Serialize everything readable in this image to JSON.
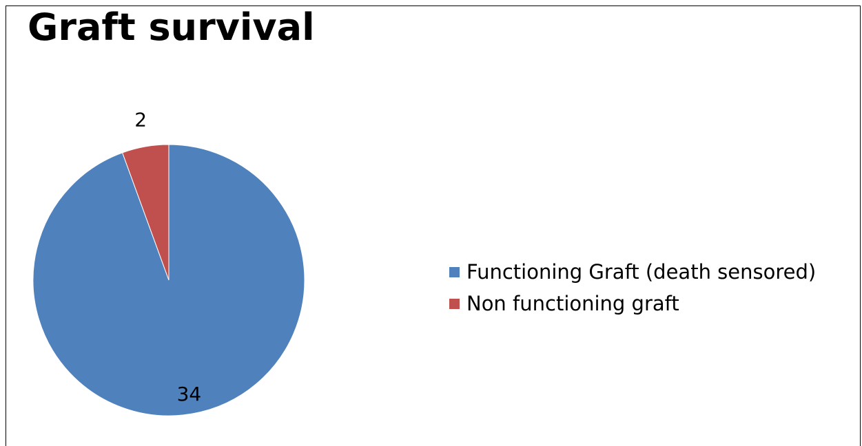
{
  "chart_data": {
    "type": "pie",
    "title": "Graft survival",
    "categories": [
      "Functioning Graft (death sensored)",
      "Non functioning graft"
    ],
    "values": [
      34,
      2
    ],
    "data_labels": [
      "34",
      "2"
    ],
    "colors": [
      "#4F81BD",
      "#C0504D"
    ],
    "legend_position": "right"
  }
}
